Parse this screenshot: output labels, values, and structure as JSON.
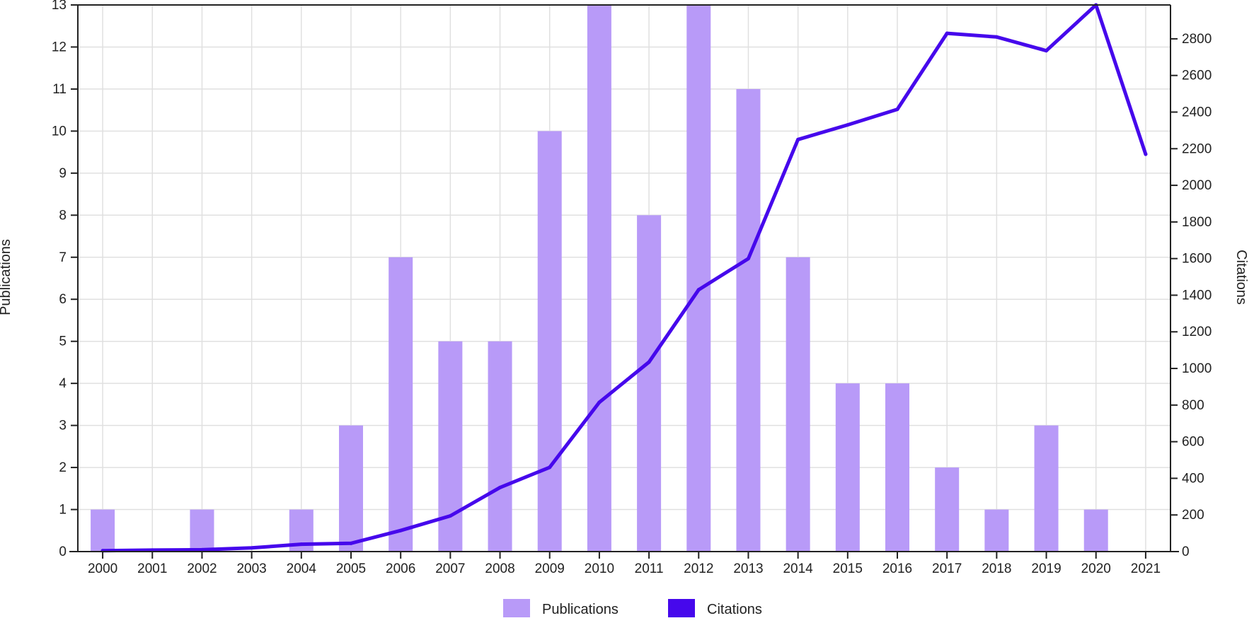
{
  "chart_data": {
    "type": "bar",
    "categories": [
      "2000",
      "2001",
      "2002",
      "2003",
      "2004",
      "2005",
      "2006",
      "2007",
      "2008",
      "2009",
      "2010",
      "2011",
      "2012",
      "2013",
      "2014",
      "2015",
      "2016",
      "2017",
      "2018",
      "2019",
      "2020",
      "2021"
    ],
    "series": [
      {
        "name": "Publications",
        "type": "bar",
        "axis": "left",
        "color": "#b89af8",
        "values": [
          1,
          0,
          1,
          0,
          1,
          3,
          7,
          5,
          5,
          10,
          13,
          8,
          13,
          11,
          7,
          4,
          4,
          2,
          1,
          3,
          1,
          0
        ]
      },
      {
        "name": "Citations",
        "type": "line",
        "axis": "right",
        "color": "#4608ec",
        "values": [
          5,
          8,
          10,
          20,
          40,
          45,
          115,
          195,
          350,
          460,
          815,
          1035,
          1430,
          1600,
          2250,
          2330,
          2415,
          2830,
          2810,
          2735,
          2985,
          2170
        ]
      }
    ],
    "ylabel": "Publications",
    "y2label": "Citations",
    "ylim": [
      0,
      13
    ],
    "y2lim": [
      0,
      2985
    ],
    "yticks": [
      "0",
      "1",
      "2",
      "3",
      "4",
      "5",
      "6",
      "7",
      "8",
      "9",
      "10",
      "11",
      "12",
      "13"
    ],
    "y2ticks": [
      "0",
      "200",
      "400",
      "600",
      "800",
      "1000",
      "1200",
      "1400",
      "1600",
      "1800",
      "2000",
      "2200",
      "2400",
      "2600",
      "2800"
    ],
    "grid": true,
    "legend_position": "bottom-center"
  }
}
